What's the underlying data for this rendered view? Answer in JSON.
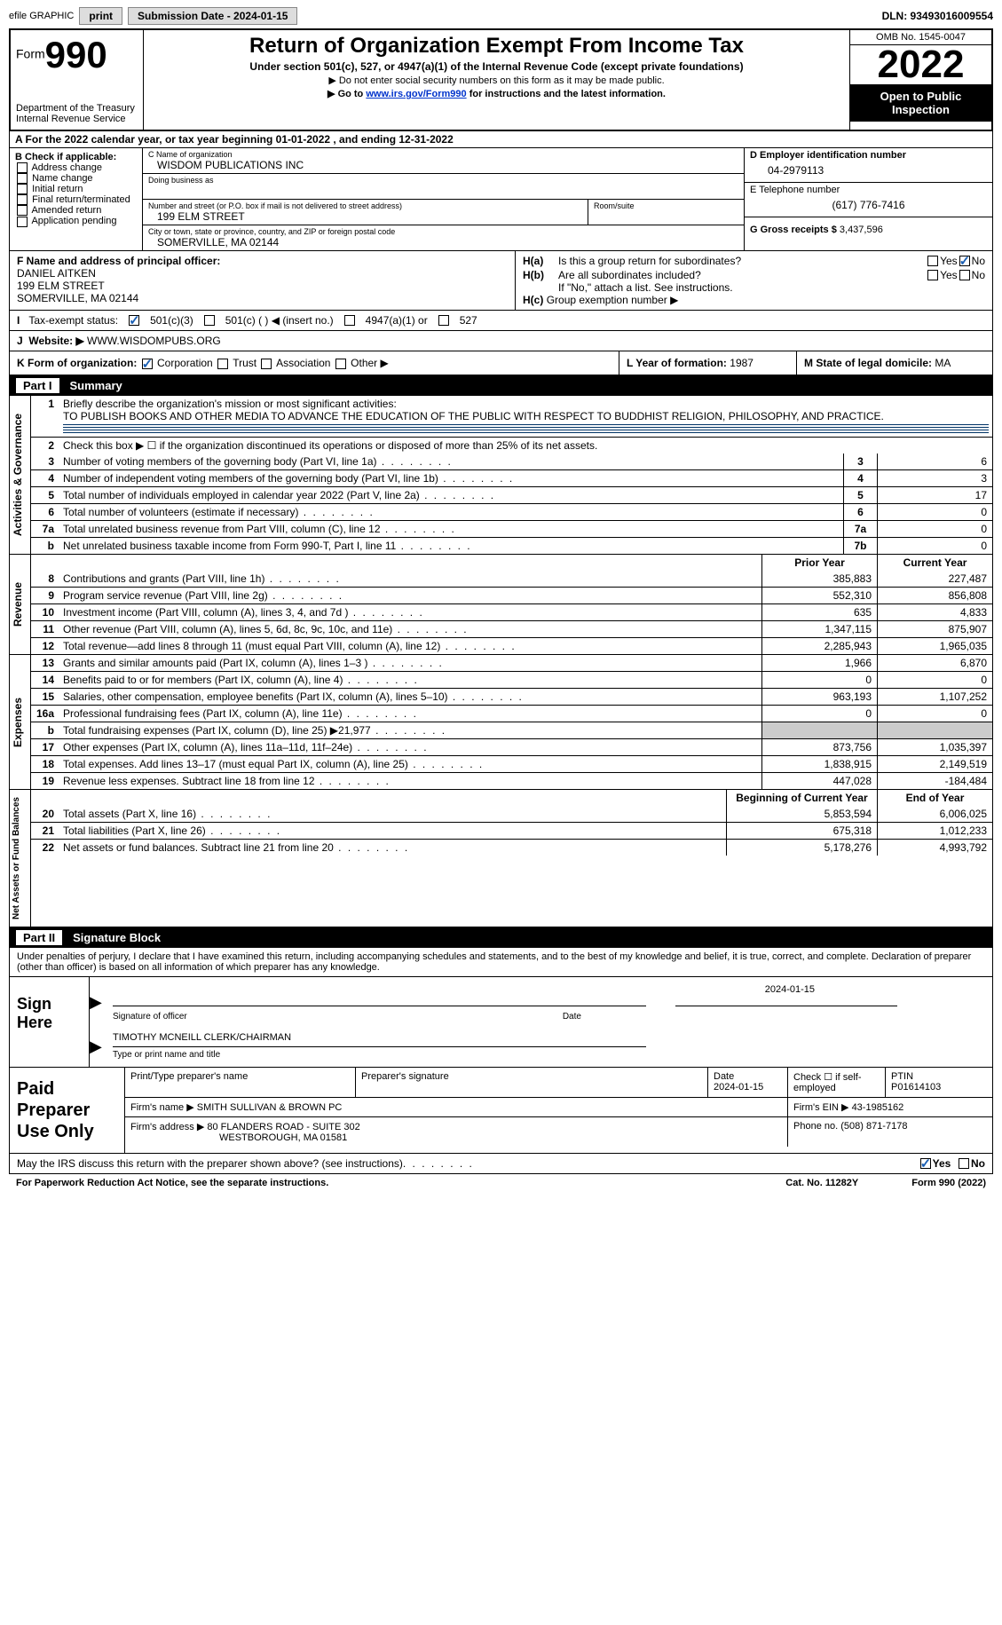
{
  "topbar": {
    "efile": "efile GRAPHIC",
    "print": "print",
    "submission": "Submission Date - 2024-01-15",
    "dln": "DLN: 93493016009554"
  },
  "header": {
    "form_word": "Form",
    "form_num": "990",
    "dept1": "Department of the Treasury",
    "dept2": "Internal Revenue Service",
    "title": "Return of Organization Exempt From Income Tax",
    "subtitle": "Under section 501(c), 527, or 4947(a)(1) of the Internal Revenue Code (except private foundations)",
    "note1": "▶ Do not enter social security numbers on this form as it may be made public.",
    "note2_pre": "▶ Go to ",
    "note2_link": "www.irs.gov/Form990",
    "note2_post": " for instructions and the latest information.",
    "omb": "OMB No. 1545-0047",
    "year": "2022",
    "open": "Open to Public Inspection"
  },
  "line_a": "A For the 2022 calendar year, or tax year beginning 01-01-2022    , and ending 12-31-2022",
  "box_b": {
    "title": "B Check if applicable:",
    "opts": [
      "Address change",
      "Name change",
      "Initial return",
      "Final return/terminated",
      "Amended return",
      "Application pending"
    ]
  },
  "box_c": {
    "name_label": "C Name of organization",
    "name": "WISDOM PUBLICATIONS INC",
    "dba_label": "Doing business as",
    "addr_label": "Number and street (or P.O. box if mail is not delivered to street address)",
    "room_label": "Room/suite",
    "addr": "199 ELM STREET",
    "city_label": "City or town, state or province, country, and ZIP or foreign postal code",
    "city": "SOMERVILLE, MA  02144"
  },
  "box_d": {
    "ein_label": "D Employer identification number",
    "ein": "04-2979113",
    "phone_label": "E Telephone number",
    "phone": "(617) 776-7416",
    "gross_label": "G Gross receipts $",
    "gross": "3,437,596"
  },
  "box_f": {
    "label": "F Name and address of principal officer:",
    "name": "DANIEL AITKEN",
    "addr1": "199 ELM STREET",
    "addr2": "SOMERVILLE, MA  02144"
  },
  "box_h": {
    "a_q": "Is this a group return for subordinates?",
    "b_q": "Are all subordinates included?",
    "b_note": "If \"No,\" attach a list. See instructions.",
    "c_label": "Group exemption number ▶",
    "ha": "H(a)",
    "hb": "H(b)",
    "hc": "H(c)",
    "yes": "Yes",
    "no": "No"
  },
  "row_i": {
    "label": "Tax-exempt status:",
    "o1": "501(c)(3)",
    "o2": "501(c) (  ) ◀ (insert no.)",
    "o3": "4947(a)(1) or",
    "o4": "527"
  },
  "row_j": {
    "label": "Website: ▶",
    "val": "WWW.WISDOMPUBS.ORG"
  },
  "row_k": {
    "label": "K Form of organization:",
    "o1": "Corporation",
    "o2": "Trust",
    "o3": "Association",
    "o4": "Other ▶",
    "l_label": "L Year of formation:",
    "l_val": "1987",
    "m_label": "M State of legal domicile:",
    "m_val": "MA"
  },
  "part1": {
    "label": "Part I",
    "title": "Summary"
  },
  "summary": {
    "activities_label": "Activities & Governance",
    "revenue_label": "Revenue",
    "expenses_label": "Expenses",
    "netassets_label": "Net Assets or Fund Balances",
    "l1_label": "Briefly describe the organization's mission or most significant activities:",
    "l1_text": "TO PUBLISH BOOKS AND OTHER MEDIA TO ADVANCE THE EDUCATION OF THE PUBLIC WITH RESPECT TO BUDDHIST RELIGION, PHILOSOPHY, AND PRACTICE.",
    "l2": "Check this box ▶ ☐ if the organization discontinued its operations or disposed of more than 25% of its net assets.",
    "lines_ag": [
      {
        "n": "3",
        "t": "Number of voting members of the governing body (Part VI, line 1a)",
        "box": "3",
        "v": "6"
      },
      {
        "n": "4",
        "t": "Number of independent voting members of the governing body (Part VI, line 1b)",
        "box": "4",
        "v": "3"
      },
      {
        "n": "5",
        "t": "Total number of individuals employed in calendar year 2022 (Part V, line 2a)",
        "box": "5",
        "v": "17"
      },
      {
        "n": "6",
        "t": "Total number of volunteers (estimate if necessary)",
        "box": "6",
        "v": "0"
      },
      {
        "n": "7a",
        "t": "Total unrelated business revenue from Part VIII, column (C), line 12",
        "box": "7a",
        "v": "0"
      },
      {
        "n": "b",
        "t": "Net unrelated business taxable income from Form 990-T, Part I, line 11",
        "box": "7b",
        "v": "0"
      }
    ],
    "col_prior": "Prior Year",
    "col_current": "Current Year",
    "lines_rev": [
      {
        "n": "8",
        "t": "Contributions and grants (Part VIII, line 1h)",
        "p": "385,883",
        "c": "227,487"
      },
      {
        "n": "9",
        "t": "Program service revenue (Part VIII, line 2g)",
        "p": "552,310",
        "c": "856,808"
      },
      {
        "n": "10",
        "t": "Investment income (Part VIII, column (A), lines 3, 4, and 7d )",
        "p": "635",
        "c": "4,833"
      },
      {
        "n": "11",
        "t": "Other revenue (Part VIII, column (A), lines 5, 6d, 8c, 9c, 10c, and 11e)",
        "p": "1,347,115",
        "c": "875,907"
      },
      {
        "n": "12",
        "t": "Total revenue—add lines 8 through 11 (must equal Part VIII, column (A), line 12)",
        "p": "2,285,943",
        "c": "1,965,035"
      }
    ],
    "lines_exp": [
      {
        "n": "13",
        "t": "Grants and similar amounts paid (Part IX, column (A), lines 1–3 )",
        "p": "1,966",
        "c": "6,870"
      },
      {
        "n": "14",
        "t": "Benefits paid to or for members (Part IX, column (A), line 4)",
        "p": "0",
        "c": "0"
      },
      {
        "n": "15",
        "t": "Salaries, other compensation, employee benefits (Part IX, column (A), lines 5–10)",
        "p": "963,193",
        "c": "1,107,252"
      },
      {
        "n": "16a",
        "t": "Professional fundraising fees (Part IX, column (A), line 11e)",
        "p": "0",
        "c": "0"
      },
      {
        "n": "b",
        "t": "Total fundraising expenses (Part IX, column (D), line 25) ▶21,977",
        "p": "",
        "c": "",
        "gray": true
      },
      {
        "n": "17",
        "t": "Other expenses (Part IX, column (A), lines 11a–11d, 11f–24e)",
        "p": "873,756",
        "c": "1,035,397"
      },
      {
        "n": "18",
        "t": "Total expenses. Add lines 13–17 (must equal Part IX, column (A), line 25)",
        "p": "1,838,915",
        "c": "2,149,519"
      },
      {
        "n": "19",
        "t": "Revenue less expenses. Subtract line 18 from line 12",
        "p": "447,028",
        "c": "-184,484"
      }
    ],
    "col_begin": "Beginning of Current Year",
    "col_end": "End of Year",
    "lines_net": [
      {
        "n": "20",
        "t": "Total assets (Part X, line 16)",
        "p": "5,853,594",
        "c": "6,006,025"
      },
      {
        "n": "21",
        "t": "Total liabilities (Part X, line 26)",
        "p": "675,318",
        "c": "1,012,233"
      },
      {
        "n": "22",
        "t": "Net assets or fund balances. Subtract line 21 from line 20",
        "p": "5,178,276",
        "c": "4,993,792"
      }
    ]
  },
  "part2": {
    "label": "Part II",
    "title": "Signature Block"
  },
  "sig": {
    "penalty": "Under penalties of perjury, I declare that I have examined this return, including accompanying schedules and statements, and to the best of my knowledge and belief, it is true, correct, and complete. Declaration of preparer (other than officer) is based on all information of which preparer has any knowledge.",
    "sign_here": "Sign Here",
    "sig_officer": "Signature of officer",
    "date_label": "Date",
    "date_val": "2024-01-15",
    "name_title": "TIMOTHY MCNEILL  CLERK/CHAIRMAN",
    "type_name": "Type or print name and title"
  },
  "paid": {
    "label": "Paid Preparer Use Only",
    "r1": {
      "c1": "Print/Type preparer's name",
      "c2": "Preparer's signature",
      "c3": "Date",
      "c3v": "2024-01-15",
      "c4": "Check ☐ if self-employed",
      "c5": "PTIN",
      "c5v": "P01614103"
    },
    "r2": {
      "c1": "Firm's name      ▶",
      "c1v": "SMITH SULLIVAN & BROWN PC",
      "c2": "Firm's EIN ▶",
      "c2v": "43-1985162"
    },
    "r3": {
      "c1": "Firm's address ▶",
      "c1v": "80 FLANDERS ROAD - SUITE 302",
      "c1v2": "WESTBOROUGH, MA  01581",
      "c2": "Phone no.",
      "c2v": "(508) 871-7178"
    }
  },
  "footer": {
    "q": "May the IRS discuss this return with the preparer shown above? (see instructions)",
    "yes": "Yes",
    "no": "No",
    "paperwork": "For Paperwork Reduction Act Notice, see the separate instructions.",
    "cat": "Cat. No. 11282Y",
    "form": "Form 990 (2022)"
  }
}
